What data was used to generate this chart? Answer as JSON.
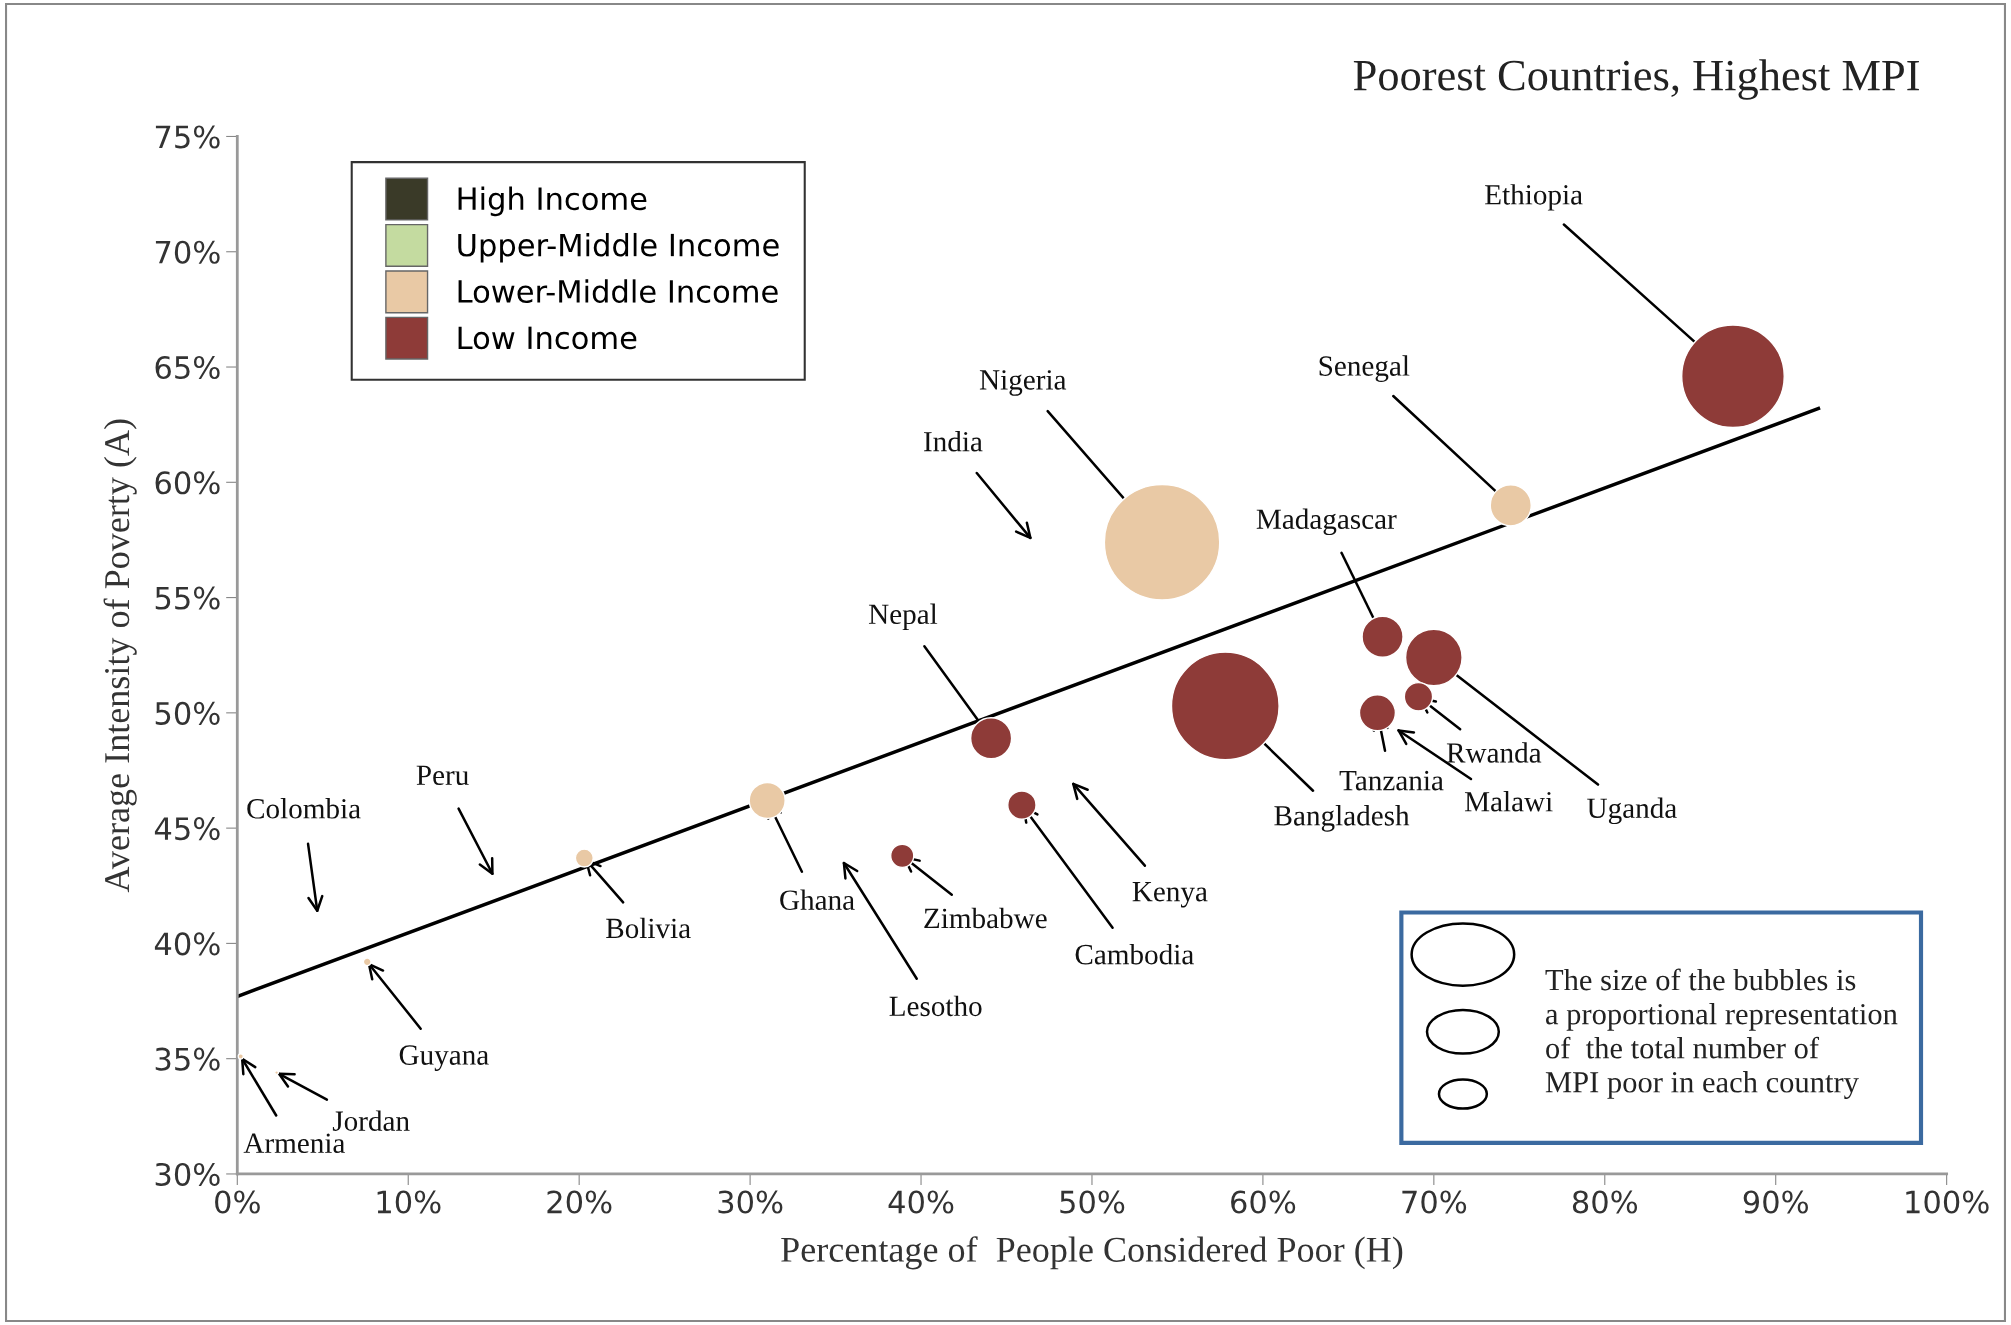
{
  "chart_data": {
    "type": "bubble",
    "title": "Poorest Countries, Highest MPI",
    "xlabel": "Percentage of  People Considered Poor (H)",
    "ylabel": "Average Intensity of Poverty (A)",
    "xlim": [
      0,
      100
    ],
    "ylim": [
      30,
      75
    ],
    "xticks": [
      {
        "value": 0,
        "label": "0%"
      },
      {
        "value": 10,
        "label": "10%"
      },
      {
        "value": 20,
        "label": "20%"
      },
      {
        "value": 30,
        "label": "30%"
      },
      {
        "value": 40,
        "label": "40%"
      },
      {
        "value": 50,
        "label": "50%"
      },
      {
        "value": 60,
        "label": "60%"
      },
      {
        "value": 70,
        "label": "70%"
      },
      {
        "value": 80,
        "label": "80%"
      },
      {
        "value": 90,
        "label": "90%"
      },
      {
        "value": 100,
        "label": "100%"
      }
    ],
    "yticks": [
      {
        "value": 30,
        "label": "30%"
      },
      {
        "value": 35,
        "label": "35%"
      },
      {
        "value": 40,
        "label": "40%"
      },
      {
        "value": 45,
        "label": "45%"
      },
      {
        "value": 50,
        "label": "50%"
      },
      {
        "value": 55,
        "label": "55%"
      },
      {
        "value": 60,
        "label": "60%"
      },
      {
        "value": 65,
        "label": "65%"
      },
      {
        "value": 70,
        "label": "70%"
      },
      {
        "value": 75,
        "label": "75%"
      }
    ],
    "grid": false,
    "legend": "top left",
    "series": [
      {
        "name": "High Income",
        "color": "#3a3a28"
      },
      {
        "name": "Upper-Middle Income",
        "color": "#c4dba0"
      },
      {
        "name": "Lower-Middle Income",
        "color": "#e9c9a5",
        "x": [
          74.5,
          54.1,
          31.0,
          20.3,
          7.6,
          0.2,
          2.3
        ],
        "values": [
          59.0,
          57.4,
          46.2,
          43.7,
          39.2,
          35.1,
          34.4
        ],
        "sizes": [
          0.126,
          1,
          0.097,
          0.024,
          0.0044,
          0.002,
          0.001
        ]
      },
      {
        "name": "Low Income",
        "color": "#8e3b38",
        "x": [
          87.5,
          57.8,
          67.0,
          70.0,
          69.1,
          66.7,
          44.1,
          45.9,
          38.9
        ],
        "values": [
          64.6,
          50.3,
          53.3,
          52.4,
          50.7,
          50.0,
          48.9,
          46.0,
          43.8
        ],
        "sizes": [
          0.79,
          0.87,
          0.126,
          0.24,
          0.06,
          0.097,
          0.126,
          0.06,
          0.04
        ]
      },
      {
        "type": "line",
        "color": "#000000",
        "x": [
          0,
          92.5
        ],
        "values": [
          37.7,
          63.2
        ]
      }
    ],
    "annotations": [
      {
        "text": "Ethiopia",
        "x": 87.5,
        "y": 64.6
      },
      {
        "text": "Senegal",
        "x": 74.5,
        "y": 59.0
      },
      {
        "text": "Nigeria",
        "x": 54.1,
        "y": 57.4
      },
      {
        "text": "Madagascar",
        "x": 67.0,
        "y": 53.3
      },
      {
        "text": "Nepal",
        "x": 44.1,
        "y": 48.9
      },
      {
        "text": "Bangladesh",
        "x": 57.8,
        "y": 50.3
      },
      {
        "text": "Tanzania",
        "x": 66.7,
        "y": 50.0
      },
      {
        "text": "Rwanda",
        "x": 69.1,
        "y": 50.7
      },
      {
        "text": "Uganda",
        "x": 70.0,
        "y": 52.4
      },
      {
        "text": "Cambodia",
        "x": 45.9,
        "y": 46.0
      },
      {
        "text": "Zimbabwe",
        "x": 38.9,
        "y": 43.8
      },
      {
        "text": "Ghana",
        "x": 31.0,
        "y": 46.2
      },
      {
        "text": "Bolivia",
        "x": 20.3,
        "y": 43.7
      },
      {
        "text": "Guyana",
        "x": 7.6,
        "y": 39.2
      },
      {
        "text": "Jordan",
        "x": 2.3,
        "y": 34.4
      },
      {
        "text": "Armenia",
        "x": 0.2,
        "y": 35.1
      },
      "India",
      "Malawi",
      "Kenya",
      "Lesotho",
      "Peru",
      "Colombia",
      "The size of the bubbles is\na proportional representation\nof  the total number of\nMPI poor in each country"
    ]
  }
}
